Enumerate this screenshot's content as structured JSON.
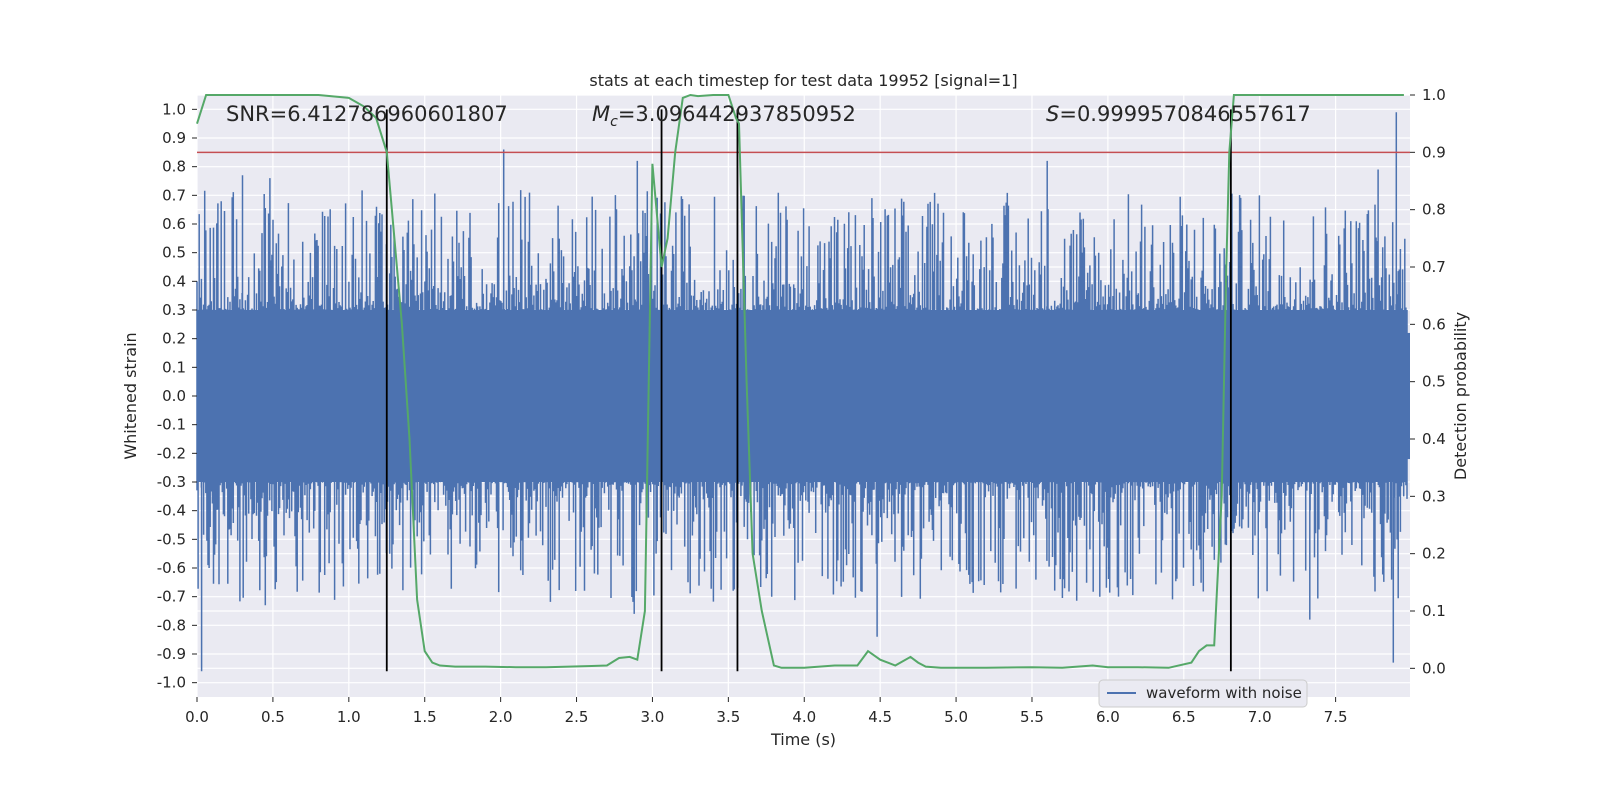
{
  "chart_data": {
    "type": "line",
    "title": "stats at each timestep for test data 19952 [signal=1]",
    "xlabel": "Time (s)",
    "ylabel_left": "Whitened strain",
    "ylabel_right": "Detection probability",
    "xlim": [
      0.0,
      7.99
    ],
    "ylim_left": [
      -1.05,
      1.05
    ],
    "ylim_right": [
      -0.05,
      1.0
    ],
    "xticks": [
      "0.0",
      "0.5",
      "1.0",
      "1.5",
      "2.0",
      "2.5",
      "3.0",
      "3.5",
      "4.0",
      "4.5",
      "5.0",
      "5.5",
      "6.0",
      "6.5",
      "7.0",
      "7.5"
    ],
    "yticks_left": [
      "1.0",
      "0.9",
      "0.8",
      "0.7",
      "0.6",
      "0.5",
      "0.4",
      "0.3",
      "0.2",
      "0.1",
      "0.0",
      "-0.1",
      "-0.2",
      "-0.3",
      "-0.4",
      "-0.5",
      "-0.6",
      "-0.7",
      "-0.8",
      "-0.9",
      "-1.0"
    ],
    "yticks_right": [
      "1.0",
      "0.9",
      "0.8",
      "0.7",
      "0.6",
      "0.5",
      "0.4",
      "0.3",
      "0.2",
      "0.1",
      "0.0"
    ],
    "grid": true,
    "legend_position": "lower-right",
    "colors": {
      "waveform": "#4c72b0",
      "probability": "#55a868",
      "threshold": "#c44e52",
      "vlines": "#000000",
      "plot_bg": "#eaeaf2",
      "grid": "#ffffff"
    },
    "annotations": {
      "snr": "SNR=6.412786960601807",
      "mc_prefix": "M",
      "mc_sub": "c",
      "mc_value": "=3.096442937850952",
      "s_prefix": "S",
      "s_value": "=0.9999570846557617"
    },
    "threshold_right": 0.9,
    "vlines_x": [
      1.25,
      3.06,
      3.56,
      6.81
    ],
    "series": [
      {
        "name": "waveform with noise",
        "axis": "left",
        "kind": "noise",
        "core_amplitude": 0.3,
        "peaks": [
          {
            "x": 0.03,
            "y": -0.96
          },
          {
            "x": 0.3,
            "y": 0.77
          },
          {
            "x": 0.45,
            "y": -0.73
          },
          {
            "x": 0.48,
            "y": 0.76
          },
          {
            "x": 2.02,
            "y": 0.86
          },
          {
            "x": 2.9,
            "y": 0.82
          },
          {
            "x": 2.88,
            "y": -0.76
          },
          {
            "x": 4.48,
            "y": -0.84
          },
          {
            "x": 5.6,
            "y": 0.82
          },
          {
            "x": 7.33,
            "y": -0.78
          },
          {
            "x": 7.78,
            "y": 0.79
          },
          {
            "x": 7.9,
            "y": 0.99
          },
          {
            "x": 7.88,
            "y": -0.93
          }
        ]
      },
      {
        "name": "",
        "axis": "right",
        "x": [
          0.0,
          0.06,
          0.2,
          0.5,
          0.8,
          1.0,
          1.1,
          1.18,
          1.25,
          1.3,
          1.35,
          1.4,
          1.45,
          1.5,
          1.55,
          1.6,
          1.7,
          1.9,
          2.1,
          2.3,
          2.6,
          2.7,
          2.78,
          2.85,
          2.9,
          2.95,
          3.0,
          3.06,
          3.1,
          3.15,
          3.2,
          3.25,
          3.3,
          3.4,
          3.5,
          3.55,
          3.57,
          3.62,
          3.66,
          3.72,
          3.8,
          3.85,
          3.9,
          4.0,
          4.2,
          4.35,
          4.42,
          4.5,
          4.6,
          4.7,
          4.75,
          4.8,
          4.9,
          5.0,
          5.2,
          5.5,
          5.7,
          5.9,
          6.0,
          6.2,
          6.4,
          6.55,
          6.6,
          6.65,
          6.7,
          6.75,
          6.78,
          6.8,
          6.83,
          6.86,
          6.9,
          7.0,
          7.5,
          7.95
        ],
        "y": [
          0.95,
          1.0,
          1.0,
          1.0,
          1.0,
          0.995,
          0.98,
          0.96,
          0.9,
          0.75,
          0.6,
          0.4,
          0.12,
          0.03,
          0.01,
          0.005,
          0.003,
          0.003,
          0.002,
          0.002,
          0.004,
          0.005,
          0.018,
          0.02,
          0.015,
          0.1,
          0.88,
          0.7,
          0.75,
          0.9,
          0.995,
          1.0,
          0.998,
          1.0,
          1.0,
          0.96,
          0.95,
          0.5,
          0.2,
          0.1,
          0.005,
          0.001,
          0.001,
          0.001,
          0.005,
          0.005,
          0.03,
          0.015,
          0.005,
          0.02,
          0.01,
          0.003,
          0.001,
          0.001,
          0.001,
          0.002,
          0.001,
          0.005,
          0.002,
          0.002,
          0.001,
          0.01,
          0.03,
          0.04,
          0.04,
          0.3,
          0.7,
          0.9,
          1.0,
          1.0,
          1.0,
          1.0,
          1.0,
          1.0
        ]
      }
    ]
  }
}
